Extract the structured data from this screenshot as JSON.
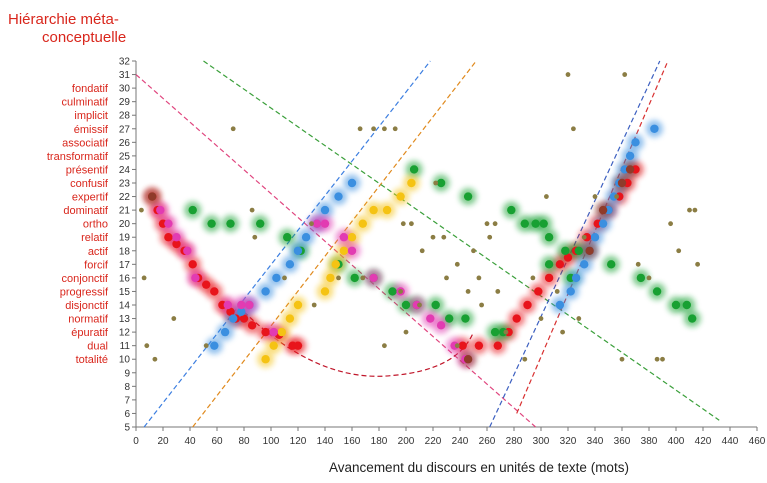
{
  "chart_data": {
    "type": "scatter",
    "title": [
      "Hiérarchie méta-",
      "conceptuelle"
    ],
    "xlabel": "Avancement du discours en unités de texte (mots)",
    "ylabel": "",
    "xlim": [
      0,
      460
    ],
    "ylim": [
      5,
      32
    ],
    "xticks": [
      "0",
      "20",
      "40",
      "60",
      "80",
      "100",
      "120",
      "140",
      "160",
      "180",
      "200",
      "220",
      "240",
      "260",
      "280",
      "300",
      "320",
      "340",
      "360",
      "380",
      "400",
      "420",
      "440",
      "460"
    ],
    "yticks": [
      "5",
      "6",
      "7",
      "8",
      "9",
      "10",
      "11",
      "12",
      "13",
      "14",
      "15",
      "16",
      "17",
      "18",
      "19",
      "20",
      "21",
      "22",
      "23",
      "24",
      "25",
      "26",
      "27",
      "28",
      "29",
      "30",
      "31",
      "32"
    ],
    "categories": [
      {
        "label": "totalité",
        "level": 10
      },
      {
        "label": "dual",
        "level": 11
      },
      {
        "label": "épuratif",
        "level": 12
      },
      {
        "label": "normatif",
        "level": 13
      },
      {
        "label": "disjonctif",
        "level": 14
      },
      {
        "label": "progressif",
        "level": 15
      },
      {
        "label": "conjonctif",
        "level": 16
      },
      {
        "label": "forcif",
        "level": 17
      },
      {
        "label": "actif",
        "level": 18
      },
      {
        "label": "relatif",
        "level": 19
      },
      {
        "label": "ortho",
        "level": 20
      },
      {
        "label": "dominatif",
        "level": 21
      },
      {
        "label": "expertif",
        "level": 22
      },
      {
        "label": "confusif",
        "level": 23
      },
      {
        "label": "présentif",
        "level": 24
      },
      {
        "label": "transformatif",
        "level": 25
      },
      {
        "label": "associatif",
        "level": 26
      },
      {
        "label": "émissif",
        "level": 27
      },
      {
        "label": "implicit",
        "level": 28
      },
      {
        "label": "culminatif",
        "level": 29
      },
      {
        "label": "fondatif",
        "level": 30
      }
    ],
    "colors": {
      "red": "#e8141b",
      "green": "#18a032",
      "blue": "#3b8fe0",
      "yellow": "#f5c313",
      "pink": "#e23bb2",
      "olive": "#8b7d44",
      "brown": "#8f3b2a"
    },
    "series": [
      {
        "color": "red",
        "points": [
          [
            12,
            22
          ],
          [
            16,
            21
          ],
          [
            20,
            20
          ],
          [
            24,
            19
          ],
          [
            30,
            18.5
          ],
          [
            36,
            18
          ],
          [
            42,
            17
          ],
          [
            46,
            16
          ],
          [
            52,
            15.5
          ],
          [
            58,
            15
          ],
          [
            64,
            14
          ],
          [
            70,
            13.5
          ],
          [
            74,
            13
          ],
          [
            80,
            13
          ],
          [
            86,
            12.5
          ],
          [
            96,
            12
          ],
          [
            106,
            11.8
          ],
          [
            116,
            11
          ],
          [
            120,
            11
          ],
          [
            242,
            11
          ],
          [
            254,
            11
          ],
          [
            268,
            11
          ],
          [
            276,
            12
          ],
          [
            282,
            13
          ],
          [
            290,
            14
          ],
          [
            298,
            15
          ],
          [
            306,
            16
          ],
          [
            314,
            17
          ],
          [
            320,
            17.5
          ],
          [
            326,
            18
          ],
          [
            334,
            19
          ],
          [
            342,
            20
          ],
          [
            350,
            21
          ],
          [
            358,
            22
          ],
          [
            364,
            23
          ],
          [
            370,
            24
          ]
        ]
      },
      {
        "color": "green",
        "points": [
          [
            42,
            21
          ],
          [
            56,
            20
          ],
          [
            70,
            20
          ],
          [
            92,
            20
          ],
          [
            112,
            19
          ],
          [
            122,
            18
          ],
          [
            150,
            17
          ],
          [
            162,
            16
          ],
          [
            176,
            16
          ],
          [
            190,
            15
          ],
          [
            200,
            14
          ],
          [
            208,
            14
          ],
          [
            222,
            14
          ],
          [
            232,
            13
          ],
          [
            244,
            13
          ],
          [
            266,
            12
          ],
          [
            272,
            12
          ],
          [
            206,
            24
          ],
          [
            226,
            23
          ],
          [
            246,
            22
          ],
          [
            278,
            21
          ],
          [
            288,
            20
          ],
          [
            296,
            20
          ],
          [
            302,
            20
          ],
          [
            306,
            19
          ],
          [
            318,
            18
          ],
          [
            328,
            18
          ],
          [
            352,
            17
          ],
          [
            374,
            16
          ],
          [
            386,
            15
          ],
          [
            400,
            14
          ],
          [
            408,
            14
          ],
          [
            412,
            13
          ],
          [
            306,
            17
          ],
          [
            322,
            16
          ]
        ]
      },
      {
        "color": "blue",
        "points": [
          [
            58,
            11
          ],
          [
            66,
            12
          ],
          [
            72,
            13
          ],
          [
            78,
            13.5
          ],
          [
            84,
            14
          ],
          [
            96,
            15
          ],
          [
            104,
            16
          ],
          [
            114,
            17
          ],
          [
            120,
            18
          ],
          [
            126,
            19
          ],
          [
            134,
            20
          ],
          [
            140,
            21
          ],
          [
            150,
            22
          ],
          [
            160,
            23
          ],
          [
            314,
            14
          ],
          [
            322,
            15
          ],
          [
            326,
            16
          ],
          [
            332,
            17
          ],
          [
            336,
            18
          ],
          [
            340,
            19
          ],
          [
            346,
            20
          ],
          [
            350,
            21
          ],
          [
            354,
            22
          ],
          [
            358,
            23
          ],
          [
            362,
            24
          ],
          [
            366,
            25
          ],
          [
            370,
            26
          ],
          [
            384,
            27
          ]
        ]
      },
      {
        "color": "yellow",
        "points": [
          [
            96,
            10
          ],
          [
            102,
            11
          ],
          [
            108,
            12
          ],
          [
            114,
            13
          ],
          [
            120,
            14
          ],
          [
            140,
            15
          ],
          [
            144,
            16
          ],
          [
            148,
            17
          ],
          [
            154,
            18
          ],
          [
            160,
            19
          ],
          [
            168,
            20
          ],
          [
            176,
            21
          ],
          [
            186,
            21
          ],
          [
            196,
            22
          ],
          [
            204,
            23
          ]
        ]
      },
      {
        "color": "pink",
        "points": [
          [
            18,
            21
          ],
          [
            24,
            20
          ],
          [
            30,
            19
          ],
          [
            38,
            18
          ],
          [
            44,
            16
          ],
          [
            68,
            14
          ],
          [
            78,
            14
          ],
          [
            84,
            14
          ],
          [
            102,
            12
          ],
          [
            134,
            20
          ],
          [
            140,
            20
          ],
          [
            154,
            19
          ],
          [
            160,
            18
          ],
          [
            176,
            16
          ],
          [
            196,
            15
          ],
          [
            208,
            14
          ],
          [
            218,
            13
          ],
          [
            226,
            12.5
          ],
          [
            236,
            11
          ],
          [
            244,
            10
          ]
        ]
      },
      {
        "color": "brown",
        "points": [
          [
            12,
            22
          ],
          [
            246,
            10
          ],
          [
            336,
            18
          ],
          [
            346,
            21
          ],
          [
            360,
            23
          ],
          [
            366,
            24
          ]
        ]
      },
      {
        "color": "olive",
        "points": [
          [
            4,
            21
          ],
          [
            6,
            16
          ],
          [
            8,
            11
          ],
          [
            14,
            10
          ],
          [
            28,
            13
          ],
          [
            52,
            11
          ],
          [
            72,
            27
          ],
          [
            86,
            21
          ],
          [
            88,
            19
          ],
          [
            110,
            16
          ],
          [
            130,
            20
          ],
          [
            132,
            14
          ],
          [
            150,
            16
          ],
          [
            166,
            27
          ],
          [
            168,
            16
          ],
          [
            176,
            27
          ],
          [
            184,
            27
          ],
          [
            192,
            27
          ],
          [
            184,
            11
          ],
          [
            196,
            15
          ],
          [
            198,
            20
          ],
          [
            204,
            20
          ],
          [
            200,
            12
          ],
          [
            210,
            14
          ],
          [
            212,
            18
          ],
          [
            220,
            19
          ],
          [
            222,
            23
          ],
          [
            228,
            19
          ],
          [
            230,
            16
          ],
          [
            238,
            17
          ],
          [
            238,
            11
          ],
          [
            246,
            15
          ],
          [
            250,
            18
          ],
          [
            254,
            16
          ],
          [
            256,
            14
          ],
          [
            260,
            20
          ],
          [
            262,
            19
          ],
          [
            266,
            20
          ],
          [
            268,
            15
          ],
          [
            274,
            12
          ],
          [
            288,
            10
          ],
          [
            294,
            16
          ],
          [
            300,
            13
          ],
          [
            304,
            22
          ],
          [
            312,
            15
          ],
          [
            316,
            12
          ],
          [
            320,
            31
          ],
          [
            324,
            27
          ],
          [
            328,
            13
          ],
          [
            332,
            19
          ],
          [
            340,
            22
          ],
          [
            356,
            22
          ],
          [
            360,
            10
          ],
          [
            362,
            31
          ],
          [
            372,
            17
          ],
          [
            380,
            16
          ],
          [
            386,
            10
          ],
          [
            390,
            10
          ],
          [
            396,
            20
          ],
          [
            402,
            18
          ],
          [
            410,
            21
          ],
          [
            414,
            21
          ],
          [
            416,
            17
          ]
        ]
      }
    ],
    "trendlines": [
      {
        "color": "#3c7ee0",
        "from": [
          6,
          5
        ],
        "to": [
          218,
          32
        ]
      },
      {
        "color": "#e08a1e",
        "from": [
          42,
          5
        ],
        "to": [
          252,
          32
        ]
      },
      {
        "color": "#e0467f",
        "from": [
          0,
          31
        ],
        "to": [
          296,
          5
        ]
      },
      {
        "color": "#3a9f3a",
        "from": [
          50,
          32
        ],
        "to": [
          432,
          5.5
        ]
      },
      {
        "color": "#3c5fc0",
        "from": [
          262,
          5
        ],
        "to": [
          388,
          32
        ]
      },
      {
        "color": "#d83030",
        "from": [
          282,
          6
        ],
        "to": [
          394,
          32
        ]
      }
    ],
    "arc": {
      "color": "#c0162a",
      "points": [
        [
          80,
          13.5
        ],
        [
          135,
          10.2
        ],
        [
          190,
          8.8
        ],
        [
          240,
          10.2
        ],
        [
          250,
          12
        ]
      ]
    },
    "grid": false,
    "legend": "none"
  }
}
